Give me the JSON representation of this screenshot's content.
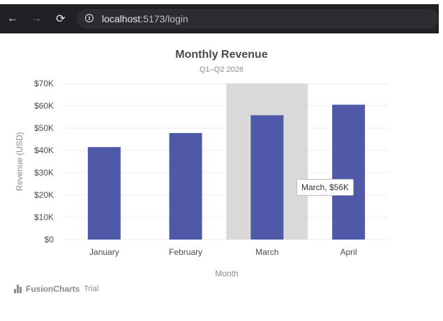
{
  "browser": {
    "url_host": "localhost",
    "url_path": ":5173/login",
    "back_icon": "arrow-left-icon",
    "forward_icon": "arrow-right-icon",
    "reload_icon": "reload-icon",
    "info_icon": "info-icon"
  },
  "chart_data": {
    "type": "bar",
    "title": "Monthly Revenue",
    "subtitle": "Q1–Q2 2026",
    "xlabel": "Month",
    "ylabel": "Revenue (USD)",
    "categories": [
      "January",
      "February",
      "March",
      "April"
    ],
    "values": [
      41500,
      47800,
      55800,
      60500
    ],
    "ylim": [
      0,
      70000
    ],
    "yticks": [
      0,
      10000,
      20000,
      30000,
      40000,
      50000,
      60000,
      70000
    ],
    "ytick_labels": [
      "$0",
      "$10K",
      "$20K",
      "$30K",
      "$40K",
      "$50K",
      "$60K",
      "$70K"
    ],
    "bar_color": "#5059a8",
    "highlight_color": "#d9d9d9",
    "highlighted_category": "March",
    "grid": true,
    "tooltip": "March, $56K"
  },
  "watermark": {
    "brand": "FusionCharts",
    "suffix": "Trial"
  }
}
